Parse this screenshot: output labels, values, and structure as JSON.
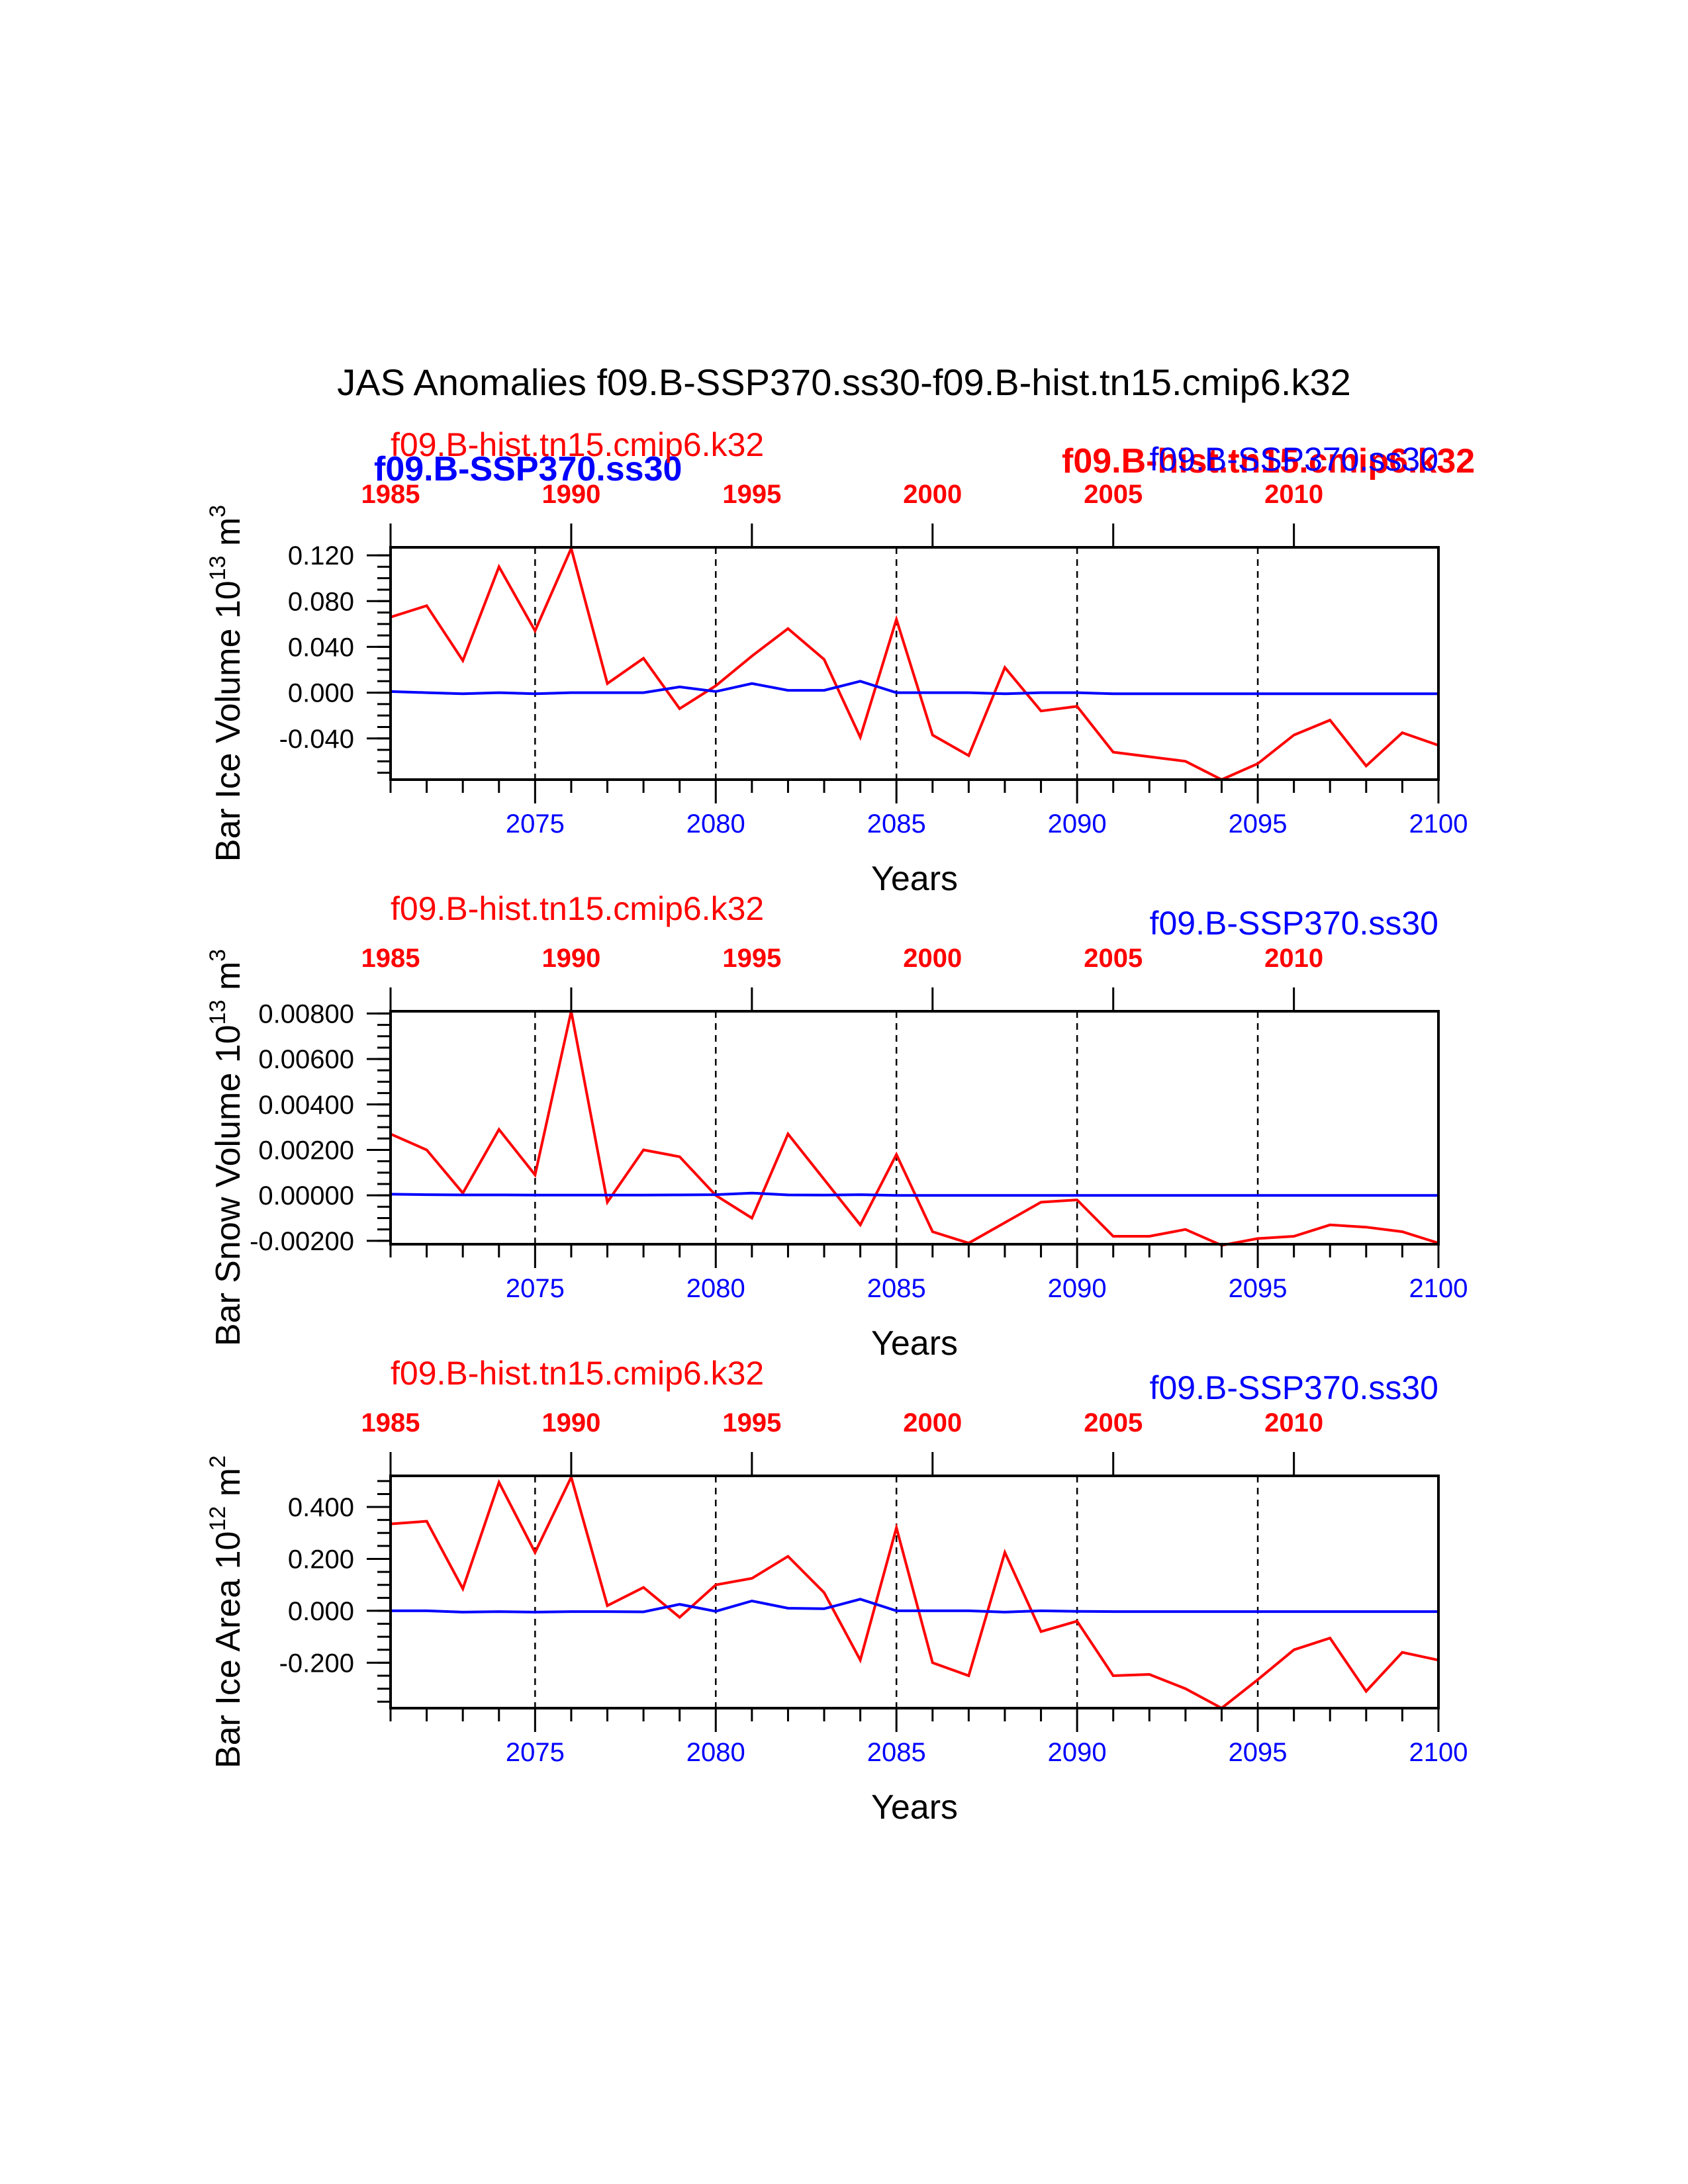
{
  "title": "JAS Anomalies f09.B-SSP370.ss30-f09.B-hist.tn15.cmip6.k32",
  "colors": {
    "hist": "#ff0000",
    "ssp": "#0000ff",
    "axis": "#000000"
  },
  "overlay_labels": {
    "ssp_left": "f09.B-SSP370.ss30",
    "hist_right": "f09.B-hist.tn15.cmip6.k32"
  },
  "chart_data": [
    {
      "type": "line",
      "ylabel": "Bar Ice Volume 10",
      "ylabel_exp": "13",
      "ylabel_unit": " m",
      "ylabel_unit_exp": "3",
      "xlabel": "Years",
      "legend_hist": "f09.B-hist.tn15.cmip6.k32",
      "legend_ssp": "f09.B-SSP370.ss30",
      "xlim": [
        2071,
        2100
      ],
      "ylim": [
        -0.076,
        0.127
      ],
      "yticks_major": [
        "0.120",
        "0.080",
        "0.040",
        "0.000",
        "-0.040"
      ],
      "ytick_values": [
        0.12,
        0.08,
        0.04,
        0.0,
        -0.04
      ],
      "yminor_step": 0.01,
      "xticks_bottom": [
        "2075",
        "2080",
        "2085",
        "2090",
        "2095",
        "2100"
      ],
      "xtick_values": [
        2075,
        2080,
        2085,
        2090,
        2095,
        2100
      ],
      "xticks_top": [
        "1985",
        "1990",
        "1995",
        "2000",
        "2005",
        "2010"
      ],
      "x": [
        2071,
        2072,
        2073,
        2074,
        2075,
        2076,
        2077,
        2078,
        2079,
        2080,
        2081,
        2082,
        2083,
        2084,
        2085,
        2086,
        2087,
        2088,
        2089,
        2090,
        2091,
        2092,
        2093,
        2094,
        2095,
        2096,
        2097,
        2098,
        2099,
        2100
      ],
      "series": [
        {
          "name": "f09.B-hist.tn15.cmip6.k32",
          "color": "#ff0000",
          "values": [
            0.066,
            0.076,
            0.028,
            0.11,
            0.054,
            0.126,
            0.008,
            0.03,
            -0.014,
            0.006,
            0.032,
            0.056,
            0.029,
            -0.039,
            0.064,
            -0.037,
            -0.055,
            0.022,
            -0.016,
            -0.012,
            -0.052,
            -0.056,
            -0.06,
            -0.076,
            -0.062,
            -0.037,
            -0.024,
            -0.064,
            -0.035,
            -0.046
          ]
        },
        {
          "name": "f09.B-SSP370.ss30",
          "color": "#0000ff",
          "values": [
            0.001,
            0.0,
            -0.001,
            0.0,
            -0.001,
            0.0,
            0.0,
            0.0,
            0.005,
            0.001,
            0.008,
            0.002,
            0.002,
            0.01,
            0.0,
            0.0,
            0.0,
            -0.001,
            0.0,
            0.0,
            -0.001,
            -0.001,
            -0.001,
            -0.001,
            -0.001,
            -0.001,
            -0.001,
            -0.001,
            -0.001,
            -0.001
          ]
        }
      ]
    },
    {
      "type": "line",
      "ylabel": "Bar Snow Volume 10",
      "ylabel_exp": "13",
      "ylabel_unit": " m",
      "ylabel_unit_exp": "3",
      "xlabel": "Years",
      "legend_hist": "f09.B-hist.tn15.cmip6.k32",
      "legend_ssp": "f09.B-SSP370.ss30",
      "xlim": [
        2071,
        2100
      ],
      "ylim": [
        -0.00215,
        0.0081
      ],
      "yticks_major": [
        "0.00800",
        "0.00600",
        "0.00400",
        "0.00200",
        "0.00000",
        "-0.00200"
      ],
      "ytick_values": [
        0.008,
        0.006,
        0.004,
        0.002,
        0.0,
        -0.002
      ],
      "yminor_step": 0.0005,
      "xticks_bottom": [
        "2075",
        "2080",
        "2085",
        "2090",
        "2095",
        "2100"
      ],
      "xtick_values": [
        2075,
        2080,
        2085,
        2090,
        2095,
        2100
      ],
      "xticks_top": [
        "1985",
        "1990",
        "1995",
        "2000",
        "2005",
        "2010"
      ],
      "x": [
        2071,
        2072,
        2073,
        2074,
        2075,
        2076,
        2077,
        2078,
        2079,
        2080,
        2081,
        2082,
        2083,
        2084,
        2085,
        2086,
        2087,
        2088,
        2089,
        2090,
        2091,
        2092,
        2093,
        2094,
        2095,
        2096,
        2097,
        2098,
        2099,
        2100
      ],
      "series": [
        {
          "name": "f09.B-hist.tn15.cmip6.k32",
          "color": "#ff0000",
          "values": [
            0.0027,
            0.002,
            0.0001,
            0.0029,
            0.0009,
            0.0081,
            -0.0003,
            0.002,
            0.0017,
            0.0,
            -0.001,
            0.0027,
            0.0007,
            -0.0013,
            0.0018,
            -0.0016,
            -0.0021,
            -0.0012,
            -0.0003,
            -0.0002,
            -0.0018,
            -0.0018,
            -0.0015,
            -0.0022,
            -0.0019,
            -0.0018,
            -0.0013,
            -0.0014,
            -0.0016,
            -0.0021
          ]
        },
        {
          "name": "f09.B-SSP370.ss30",
          "color": "#0000ff",
          "values": [
            5e-05,
            3e-05,
            2e-05,
            2e-05,
            1e-05,
            1e-05,
            1e-05,
            1e-05,
            2e-05,
            3e-05,
            0.0001,
            2e-05,
            1e-05,
            3e-05,
            0.0,
            0.0,
            0.0,
            0.0,
            0.0,
            0.0,
            0.0,
            0.0,
            0.0,
            0.0,
            0.0,
            0.0,
            0.0,
            0.0,
            0.0,
            0.0
          ]
        }
      ]
    },
    {
      "type": "line",
      "ylabel": "Bar Ice Area 10",
      "ylabel_exp": "12",
      "ylabel_unit": " m",
      "ylabel_unit_exp": "2",
      "xlabel": "Years",
      "legend_hist": "f09.B-hist.tn15.cmip6.k32",
      "legend_ssp": "f09.B-SSP370.ss30",
      "xlim": [
        2071,
        2100
      ],
      "ylim": [
        -0.375,
        0.52
      ],
      "yticks_major": [
        "0.400",
        "0.200",
        "0.000",
        "-0.200"
      ],
      "ytick_values": [
        0.4,
        0.2,
        0.0,
        -0.2
      ],
      "yminor_step": 0.05,
      "xticks_bottom": [
        "2075",
        "2080",
        "2085",
        "2090",
        "2095",
        "2100"
      ],
      "xtick_values": [
        2075,
        2080,
        2085,
        2090,
        2095,
        2100
      ],
      "xticks_top": [
        "1985",
        "1990",
        "1995",
        "2000",
        "2005",
        "2010"
      ],
      "x": [
        2071,
        2072,
        2073,
        2074,
        2075,
        2076,
        2077,
        2078,
        2079,
        2080,
        2081,
        2082,
        2083,
        2084,
        2085,
        2086,
        2087,
        2088,
        2089,
        2090,
        2091,
        2092,
        2093,
        2094,
        2095,
        2096,
        2097,
        2098,
        2099,
        2100
      ],
      "series": [
        {
          "name": "f09.B-hist.tn15.cmip6.k32",
          "color": "#ff0000",
          "values": [
            0.335,
            0.345,
            0.085,
            0.495,
            0.225,
            0.515,
            0.02,
            0.09,
            -0.025,
            0.1,
            0.125,
            0.21,
            0.07,
            -0.19,
            0.32,
            -0.2,
            -0.25,
            0.225,
            -0.08,
            -0.04,
            -0.25,
            -0.245,
            -0.3,
            -0.375,
            -0.265,
            -0.15,
            -0.105,
            -0.31,
            -0.16,
            -0.19
          ]
        },
        {
          "name": "f09.B-SSP370.ss30",
          "color": "#0000ff",
          "values": [
            0.0,
            0.0,
            -0.005,
            -0.003,
            -0.005,
            -0.003,
            -0.003,
            -0.004,
            0.025,
            -0.002,
            0.038,
            0.01,
            0.008,
            0.045,
            0.0,
            0.0,
            0.0,
            -0.005,
            0.0,
            -0.002,
            -0.003,
            -0.003,
            -0.003,
            -0.003,
            -0.003,
            -0.003,
            -0.003,
            -0.003,
            -0.003,
            -0.003
          ]
        }
      ]
    }
  ]
}
